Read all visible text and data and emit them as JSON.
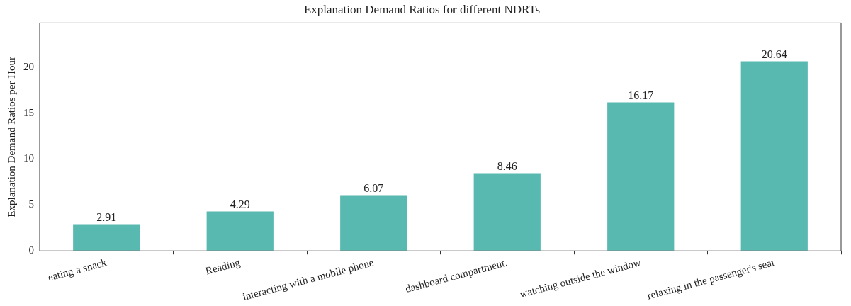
{
  "chart_data": {
    "type": "bar",
    "title": "Explanation Demand Ratios for different NDRTs",
    "ylabel": "Explanation Demand Ratios per Hour",
    "categories": [
      "eating a snack",
      "Reading",
      "interacting with a mobile phone",
      "dashboard compartment.",
      "watching outside the window",
      "relaxing in the passenger's seat"
    ],
    "values": [
      2.91,
      4.29,
      6.07,
      8.46,
      16.17,
      20.64
    ],
    "color": "#58b9b0",
    "ylim": [
      0,
      24.8
    ],
    "yticks": [
      0,
      5,
      10,
      15,
      20
    ],
    "data_labels": true,
    "grid": false,
    "legend": false
  }
}
